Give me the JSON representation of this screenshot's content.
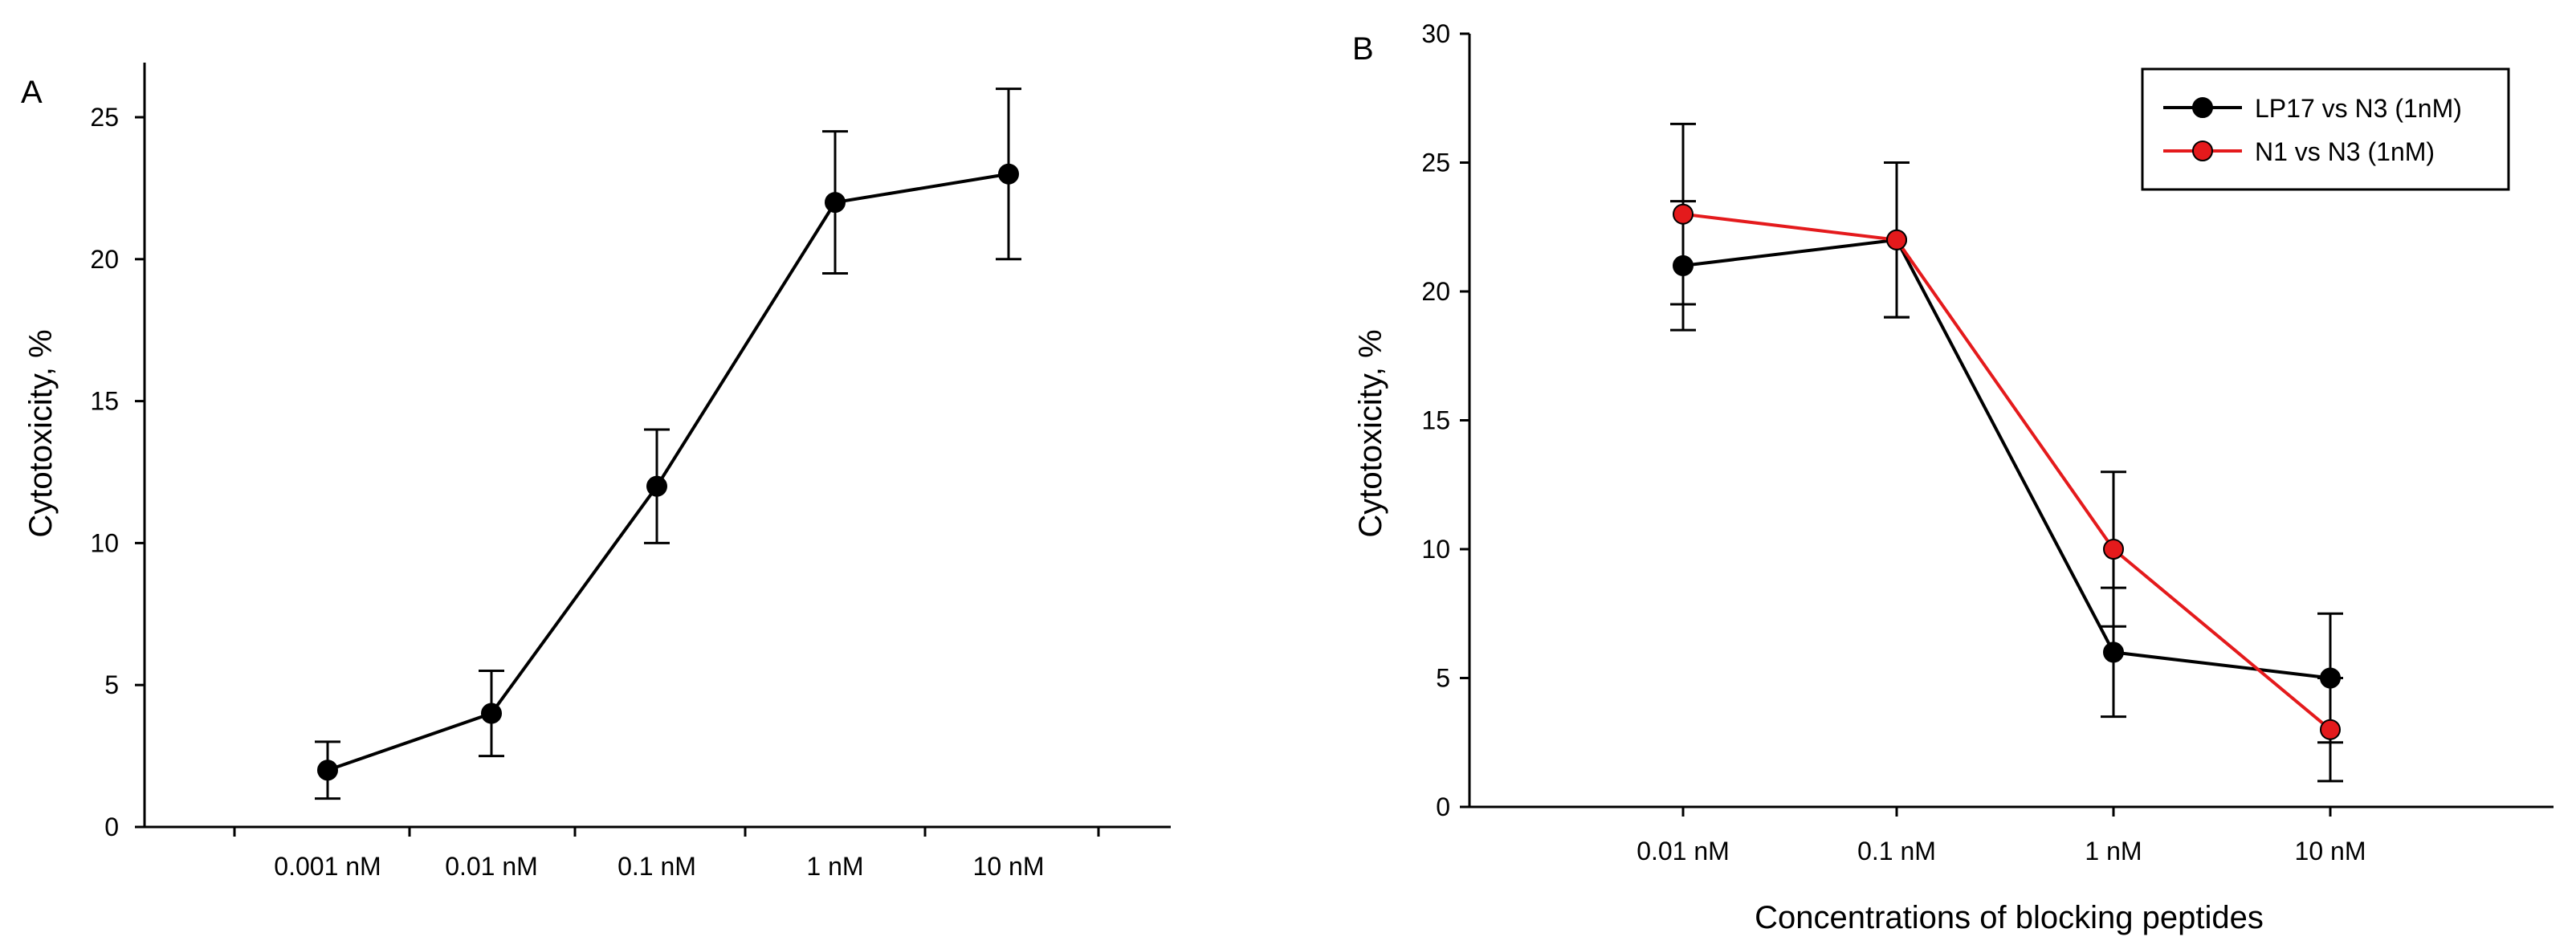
{
  "chart_data": [
    {
      "panel": "A",
      "type": "line",
      "title": "",
      "xlabel": "",
      "ylabel": "Cytotoxicity, %",
      "categories": [
        "0.001 nM",
        "0.01 nM",
        "0.1 nM",
        "1 nM",
        "10 nM"
      ],
      "yticks": [
        0,
        5,
        10,
        15,
        20,
        25
      ],
      "ylim": [
        0,
        27
      ],
      "grid": false,
      "series": [
        {
          "name": "",
          "color": "#000000",
          "marker_fill": "#000000",
          "values": [
            2,
            4,
            12,
            22,
            23
          ],
          "errors": [
            1,
            1.5,
            2,
            2.5,
            3
          ]
        }
      ]
    },
    {
      "panel": "B",
      "type": "line",
      "title": "",
      "xlabel": "Concentrations of blocking peptides",
      "ylabel": "Cytotoxicity, %",
      "categories": [
        "0.01 nM",
        "0.1 nM",
        "1 nM",
        "10 nM"
      ],
      "yticks": [
        0,
        5,
        10,
        15,
        20,
        25,
        30
      ],
      "ylim": [
        0,
        30
      ],
      "grid": false,
      "legend_position": "top-right",
      "series": [
        {
          "name": "LP17 vs N3 (1nM)",
          "color": "#000000",
          "marker_fill": "#000000",
          "values": [
            21,
            22,
            6,
            5
          ],
          "errors": [
            2.5,
            3,
            2.5,
            2.5
          ]
        },
        {
          "name": "N1 vs N3 (1nM)",
          "color": "#e41a1c",
          "marker_fill": "#e41a1c",
          "values": [
            23,
            22,
            10,
            3
          ],
          "errors": [
            3.5,
            3,
            3,
            2
          ]
        }
      ]
    }
  ]
}
